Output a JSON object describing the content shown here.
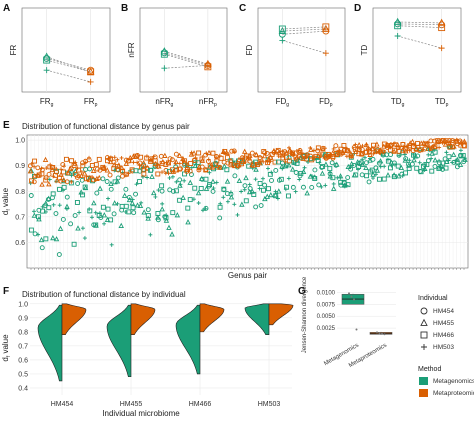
{
  "colors": {
    "metagenomics": "#1b9e77",
    "metaproteomics": "#d95f02",
    "grid": "#e3e3e3",
    "box_border": "#333333"
  },
  "panel_letters": [
    "A",
    "B",
    "C",
    "D",
    "E",
    "F",
    "G"
  ],
  "chart_data": [
    {
      "id": "A",
      "type": "scatter",
      "ylabel": "FR",
      "categories": [
        "FRg",
        "FRp"
      ],
      "category_labels": [
        {
          "main": "FR",
          "sub": "g"
        },
        {
          "main": "FR",
          "sub": "p"
        }
      ],
      "ylim": [
        0,
        0.5
      ],
      "series": [
        {
          "name": "HM454",
          "shape": "circle",
          "values": [
            0.2,
            0.13
          ]
        },
        {
          "name": "HM455",
          "shape": "triangle",
          "values": [
            0.21,
            0.12
          ]
        },
        {
          "name": "HM466",
          "shape": "square",
          "values": [
            0.19,
            0.12
          ]
        },
        {
          "name": "HM503",
          "shape": "plus",
          "values": [
            0.13,
            0.06
          ]
        }
      ]
    },
    {
      "id": "B",
      "type": "scatter",
      "ylabel": "nFR",
      "categories": [
        "nFRg",
        "nFRp"
      ],
      "category_labels": [
        {
          "main": "nFR",
          "sub": "g"
        },
        {
          "main": "nFR",
          "sub": "p"
        }
      ],
      "ylim": [
        0,
        0.6
      ],
      "series": [
        {
          "name": "HM454",
          "shape": "circle",
          "values": [
            0.28,
            0.19
          ]
        },
        {
          "name": "HM455",
          "shape": "triangle",
          "values": [
            0.29,
            0.2
          ]
        },
        {
          "name": "HM466",
          "shape": "square",
          "values": [
            0.27,
            0.18
          ]
        },
        {
          "name": "HM503",
          "shape": "plus",
          "values": [
            0.17,
            0.19
          ]
        }
      ]
    },
    {
      "id": "C",
      "type": "scatter",
      "ylabel": "FD",
      "categories": [
        "FDg",
        "FDp"
      ],
      "category_labels": [
        {
          "main": "FD",
          "sub": "g"
        },
        {
          "main": "FD",
          "sub": "p"
        }
      ],
      "ylim": [
        0,
        0.8
      ],
      "series": [
        {
          "name": "HM454",
          "shape": "circle",
          "values": [
            0.55,
            0.58
          ]
        },
        {
          "name": "HM455",
          "shape": "triangle",
          "values": [
            0.58,
            0.6
          ]
        },
        {
          "name": "HM466",
          "shape": "square",
          "values": [
            0.6,
            0.62
          ]
        },
        {
          "name": "HM503",
          "shape": "plus",
          "values": [
            0.49,
            0.37
          ]
        }
      ]
    },
    {
      "id": "D",
      "type": "scatter",
      "ylabel": "TD",
      "categories": [
        "TDg",
        "TDp"
      ],
      "category_labels": [
        {
          "main": "TD",
          "sub": "g"
        },
        {
          "main": "TD",
          "sub": "p"
        }
      ],
      "ylim": [
        0,
        0.9
      ],
      "series": [
        {
          "name": "HM454",
          "shape": "circle",
          "values": [
            0.73,
            0.72
          ]
        },
        {
          "name": "HM455",
          "shape": "triangle",
          "values": [
            0.75,
            0.74
          ]
        },
        {
          "name": "HM466",
          "shape": "square",
          "values": [
            0.71,
            0.69
          ]
        },
        {
          "name": "HM503",
          "shape": "plus",
          "values": [
            0.6,
            0.47
          ]
        }
      ]
    },
    {
      "id": "E",
      "type": "scatter",
      "title": "Distribution of functional distance by genus pair",
      "xlabel": "Genus pair",
      "ylabel": "d_f value",
      "ylabel_main": "d",
      "ylabel_sub": "f",
      "ylabel_rest": " value",
      "ylim": [
        0.5,
        1.02
      ],
      "yticks": [
        0.6,
        0.7,
        0.8,
        0.9,
        1.0
      ],
      "ytick_labels": [
        "0.6",
        "0.7",
        "0.8",
        "0.9",
        "1.0"
      ],
      "n_pairs": 120,
      "series": [
        {
          "name": "Metagenomics",
          "distribution": "d_f ranges roughly 0.52–1.0, median near 0.84, rising across genus pairs"
        },
        {
          "name": "Metaproteomics",
          "distribution": "d_f ranges roughly 0.78–1.0, median near 0.93, rising across genus pairs"
        }
      ]
    },
    {
      "id": "F",
      "type": "violin",
      "title": "Distribution of functional distance by individual",
      "xlabel": "Individual microbiome",
      "ylabel": "d_f value",
      "ylabel_main": "d",
      "ylabel_sub": "f",
      "ylabel_rest": " value",
      "ylim": [
        0.35,
        1.02
      ],
      "yticks": [
        0.4,
        0.5,
        0.6,
        0.7,
        0.8,
        0.9,
        1.0
      ],
      "ytick_labels": [
        "0.4",
        "0.5",
        "0.6",
        "0.7",
        "0.8",
        "0.9",
        "1.0"
      ],
      "categories": [
        "HM454",
        "HM455",
        "HM466",
        "HM503"
      ],
      "series": [
        {
          "name": "Metagenomics",
          "side": "left",
          "groups": [
            {
              "min": 0.45,
              "max": 0.99,
              "mode": 0.83
            },
            {
              "min": 0.48,
              "max": 0.99,
              "mode": 0.84
            },
            {
              "min": 0.5,
              "max": 0.99,
              "mode": 0.85
            },
            {
              "min": 0.78,
              "max": 1.0,
              "mode": 0.97
            }
          ]
        },
        {
          "name": "Metaproteomics",
          "side": "right",
          "groups": [
            {
              "min": 0.78,
              "max": 1.0,
              "mode": 0.96
            },
            {
              "min": 0.78,
              "max": 1.0,
              "mode": 0.96
            },
            {
              "min": 0.8,
              "max": 1.0,
              "mode": 0.96
            },
            {
              "min": 0.85,
              "max": 1.0,
              "mode": 0.99
            }
          ]
        }
      ]
    },
    {
      "id": "G",
      "type": "box",
      "ylabel": "Jensen-Shannon divergence",
      "categories": [
        "Metagenomics",
        "Metaproteomics"
      ],
      "ylim": [
        0.0,
        0.0105
      ],
      "yticks": [
        0.0025,
        0.005,
        0.0075,
        0.01
      ],
      "ytick_labels": [
        "0.0025",
        "0.0050",
        "0.0075",
        "0.0100"
      ],
      "series": [
        {
          "name": "Metagenomics",
          "q1": 0.0075,
          "median": 0.0086,
          "q3": 0.0096,
          "whisker_low": 0.0075,
          "whisker_high": 0.0097,
          "points": [
            0.0098,
            0.0091,
            0.0085,
            0.0022
          ]
        },
        {
          "name": "Metaproteomics",
          "q1": 0.0012,
          "median": 0.0014,
          "q3": 0.0016,
          "whisker_low": 0.0011,
          "whisker_high": 0.0017,
          "points": [
            0.0016,
            0.0014,
            0.0013,
            0.0012
          ]
        }
      ]
    }
  ],
  "legend": {
    "individual_title": "Individual",
    "individuals": [
      {
        "name": "HM454",
        "shape": "circle"
      },
      {
        "name": "HM455",
        "shape": "triangle"
      },
      {
        "name": "HM466",
        "shape": "square"
      },
      {
        "name": "HM503",
        "shape": "plus"
      }
    ],
    "method_title": "Method",
    "methods": [
      {
        "name": "Metagenomics",
        "color": "#1b9e77"
      },
      {
        "name": "Metaproteomics",
        "color": "#d95f02"
      }
    ]
  }
}
